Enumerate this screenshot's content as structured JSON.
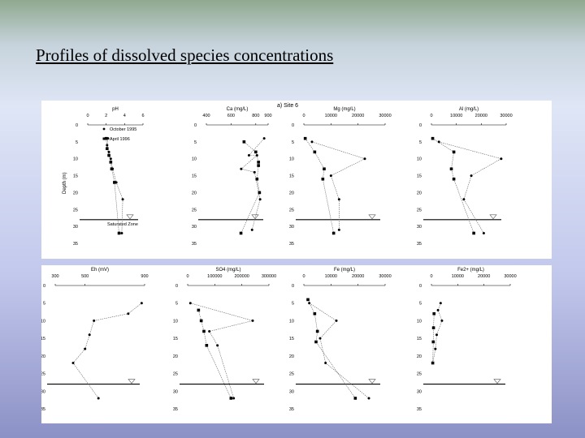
{
  "slide": {
    "title": "Profiles of dissolved species concentrations"
  },
  "colors": {
    "panel": "#ffffff",
    "ink": "#000000"
  },
  "chart_data": {
    "type": "scatter",
    "site_label": "a) Site 6",
    "depth_ticks": [
      "0",
      "5",
      "10",
      "15",
      "20",
      "25",
      "30",
      "35"
    ],
    "depth_label": "Depth (m)",
    "legend": [
      {
        "name": "October 1995",
        "symbol": "small-dot"
      },
      {
        "name": "April 1996",
        "symbol": "filled-square"
      }
    ],
    "water_table_depth": 28,
    "saturated_zone_label": "Saturated Zone",
    "plots": [
      {
        "name": "pH",
        "xlabel": "pH",
        "xmin": 0,
        "xmax": 6,
        "ticks": [
          "0",
          "2",
          "4",
          "6"
        ],
        "oct": [
          [
            2.2,
            4
          ],
          [
            2.1,
            6
          ],
          [
            2.3,
            8
          ],
          [
            2.5,
            10
          ],
          [
            2.7,
            13
          ],
          [
            3.1,
            17
          ],
          [
            3.8,
            22
          ],
          [
            3.7,
            32
          ]
        ],
        "apr": [
          [
            2.0,
            4
          ],
          [
            2.1,
            7
          ],
          [
            2.3,
            9
          ],
          [
            2.5,
            11
          ],
          [
            2.6,
            13
          ],
          [
            2.9,
            17
          ],
          [
            3.4,
            32
          ]
        ]
      },
      {
        "name": "Ca",
        "xlabel": "Ca (mg/L)",
        "xmin": 400,
        "xmax": 900,
        "ticks": [
          "400",
          "600",
          "800",
          "900"
        ],
        "oct": [
          [
            868,
            4
          ],
          [
            745,
            9
          ],
          [
            810,
            9
          ],
          [
            682,
            13
          ],
          [
            790,
            14
          ],
          [
            835,
            22
          ],
          [
            770,
            31
          ]
        ],
        "apr": [
          [
            705,
            5
          ],
          [
            800,
            8
          ],
          [
            822,
            11
          ],
          [
            822,
            12
          ],
          [
            810,
            16
          ],
          [
            830,
            20
          ],
          [
            680,
            32
          ]
        ]
      },
      {
        "name": "Mg",
        "xlabel": "Mg (mg/L)",
        "xmin": 0,
        "xmax": 30000,
        "ticks": [
          "0",
          "10000",
          "20000",
          "30000"
        ],
        "oct": [
          [
            3000,
            5
          ],
          [
            22500,
            10
          ],
          [
            10000,
            15
          ],
          [
            13000,
            22
          ],
          [
            13000,
            31
          ]
        ],
        "apr": [
          [
            500,
            4
          ],
          [
            4000,
            8
          ],
          [
            7500,
            13
          ],
          [
            7000,
            16
          ],
          [
            11000,
            32
          ]
        ]
      },
      {
        "name": "Al",
        "xlabel": "Al (mg/L)",
        "xmin": 0,
        "xmax": 30000,
        "ticks": [
          "0",
          "10000",
          "20000",
          "30000"
        ],
        "oct": [
          [
            3000,
            5
          ],
          [
            28000,
            10
          ],
          [
            16000,
            15
          ],
          [
            13000,
            22
          ],
          [
            21000,
            32
          ]
        ],
        "apr": [
          [
            500,
            4
          ],
          [
            9000,
            8
          ],
          [
            8000,
            13
          ],
          [
            9000,
            16
          ],
          [
            17000,
            32
          ]
        ]
      },
      {
        "name": "Eh",
        "xlabel": "Eh (mV)",
        "xmin": 300,
        "xmax": 900,
        "ticks": [
          "300",
          "500",
          "900"
        ],
        "oct": [
          [
            880,
            5
          ],
          [
            790,
            8
          ],
          [
            560,
            10
          ],
          [
            530,
            14
          ],
          [
            500,
            18
          ],
          [
            420,
            22
          ],
          [
            590,
            32
          ]
        ],
        "apr": []
      },
      {
        "name": "SO4",
        "xlabel": "SO4 (mg/L)",
        "xmin": 0,
        "xmax": 300000,
        "ticks": [
          "0",
          "100000",
          "200000",
          "300000"
        ],
        "oct": [
          [
            10000,
            5
          ],
          [
            240000,
            10
          ],
          [
            80000,
            13
          ],
          [
            110000,
            17
          ],
          [
            170000,
            32
          ]
        ],
        "apr": [
          [
            40000,
            7
          ],
          [
            50000,
            10
          ],
          [
            60000,
            13
          ],
          [
            70000,
            17
          ],
          [
            160000,
            32
          ]
        ]
      },
      {
        "name": "Fe",
        "xlabel": "Fe (mg/L)",
        "xmin": 0,
        "xmax": 30000,
        "ticks": [
          "0",
          "10000",
          "20000",
          "30000"
        ],
        "oct": [
          [
            2000,
            5
          ],
          [
            12000,
            10
          ],
          [
            6000,
            15
          ],
          [
            8000,
            22
          ],
          [
            24000,
            32
          ]
        ],
        "apr": [
          [
            1500,
            4
          ],
          [
            4000,
            8
          ],
          [
            5000,
            13
          ],
          [
            4500,
            16
          ],
          [
            19000,
            32
          ]
        ]
      },
      {
        "name": "Fe2+",
        "xlabel": "Fe2+ (mg/L)",
        "xmin": 0,
        "xmax": 30000,
        "ticks": [
          "0",
          "10000",
          "20000",
          "30000"
        ],
        "oct": [
          [
            3500,
            5
          ],
          [
            2500,
            7
          ],
          [
            4000,
            10
          ],
          [
            2000,
            14
          ],
          [
            1500,
            18
          ],
          [
            500,
            22
          ]
        ],
        "apr": [
          [
            1000,
            8
          ],
          [
            800,
            12
          ],
          [
            700,
            16
          ],
          [
            500,
            22
          ]
        ]
      }
    ]
  }
}
